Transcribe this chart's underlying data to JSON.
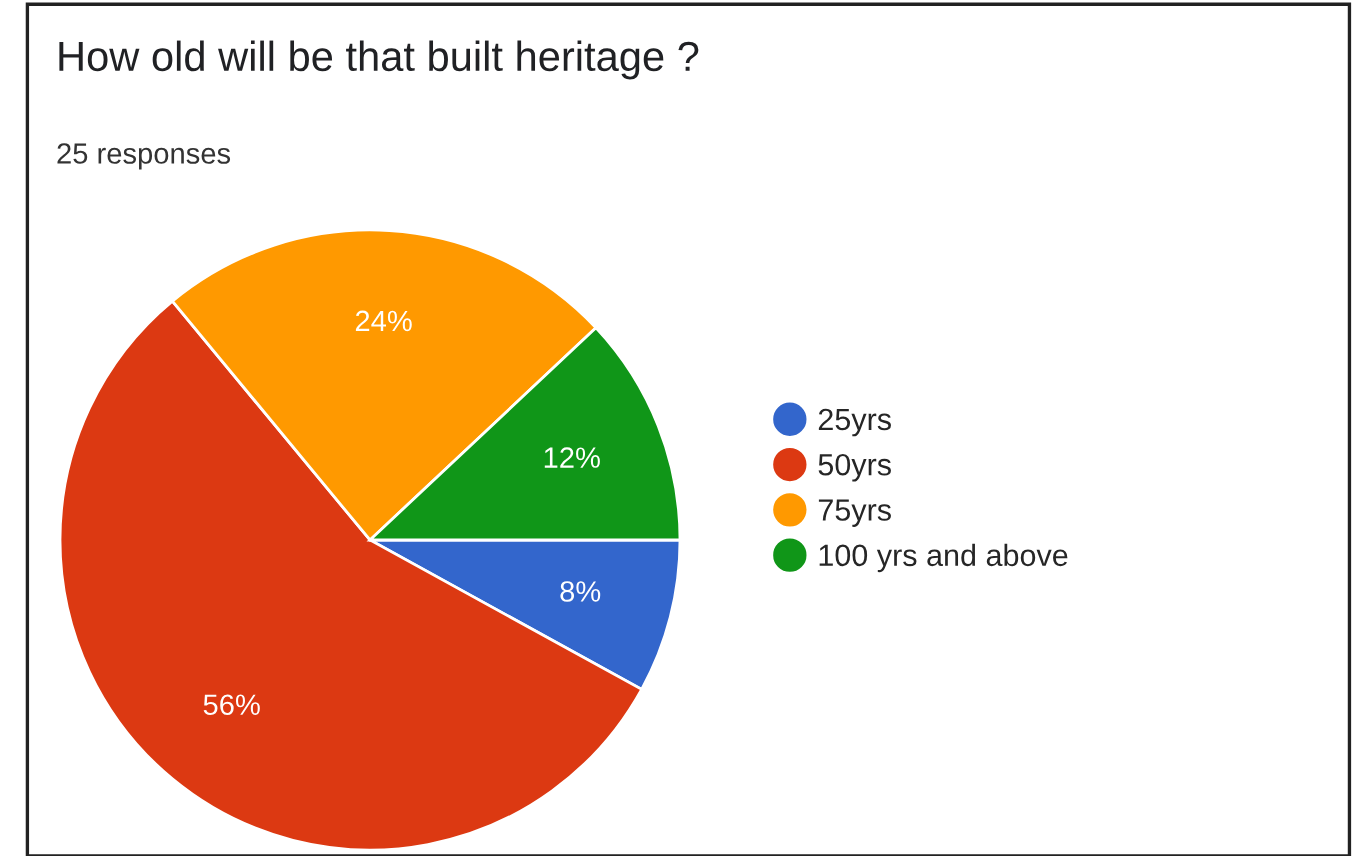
{
  "chart_data": {
    "type": "pie",
    "title": "How old will be that built heritage ?",
    "subtitle": "25 responses",
    "categories": [
      "25yrs",
      "50yrs",
      "75yrs",
      "100 yrs and above"
    ],
    "values": [
      8,
      56,
      24,
      12
    ],
    "colors": [
      "#3366cc",
      "#dc3912",
      "#ff9900",
      "#109618"
    ],
    "value_labels": [
      "8%",
      "56%",
      "24%",
      "12%"
    ],
    "legend": "right"
  }
}
